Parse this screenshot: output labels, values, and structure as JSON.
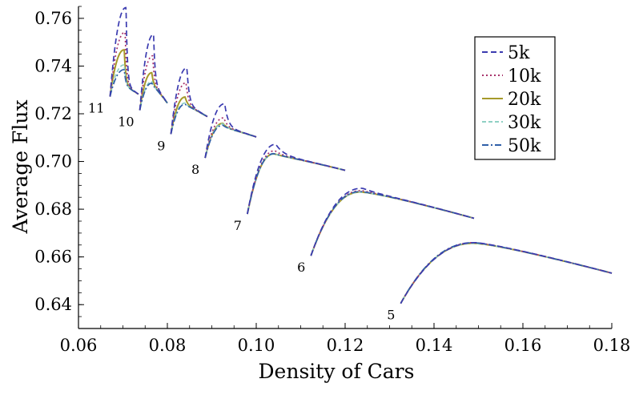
{
  "chart_data": {
    "type": "line",
    "title": "",
    "xlabel": "Density of Cars",
    "ylabel": "Average Flux",
    "xlim": [
      0.06,
      0.18
    ],
    "ylim": [
      0.63,
      0.765
    ],
    "xticks": [
      "0.06",
      "0.08",
      "0.10",
      "0.12",
      "0.14",
      "0.16",
      "0.18"
    ],
    "xtick_values": [
      0.06,
      0.08,
      0.1,
      0.12,
      0.14,
      0.16,
      0.18
    ],
    "yticks": [
      "0.64",
      "0.66",
      "0.68",
      "0.70",
      "0.72",
      "0.74",
      "0.76"
    ],
    "ytick_values": [
      0.64,
      0.66,
      0.68,
      0.7,
      0.72,
      0.74,
      0.76
    ],
    "grid": false,
    "legend_position": "top-right",
    "series": [
      {
        "name": "5k",
        "color": "#3b3bb0",
        "dash": "7,4"
      },
      {
        "name": "10k",
        "color": "#a8326b",
        "dash": "2,3"
      },
      {
        "name": "20k",
        "color": "#a69a2a",
        "dash": ""
      },
      {
        "name": "30k",
        "color": "#8fd0c4",
        "dash": "5,3"
      },
      {
        "name": "50k",
        "color": "#2f5fa8",
        "dash": "8,3,2,3"
      }
    ],
    "segments": [
      {
        "label": "5",
        "x_start": 0.1325,
        "x_end": 0.18,
        "y_start": 0.6405,
        "peak_x": 0.149,
        "peak_y": 0.6662,
        "y_end": 0.6532,
        "peaks": [
          0.666,
          0.666,
          0.6657,
          0.6657,
          0.666
        ]
      },
      {
        "label": "6",
        "x_start": 0.1123,
        "x_end": 0.149,
        "y_start": 0.6605,
        "peak_x": 0.1235,
        "peak_y": 0.6875,
        "y_end": 0.6762,
        "peaks": [
          0.6888,
          0.6878,
          0.6872,
          0.6872,
          0.6874
        ]
      },
      {
        "label": "7",
        "x_start": 0.098,
        "x_end": 0.12,
        "y_start": 0.678,
        "peak_x": 0.104,
        "peak_y": 0.7027,
        "y_end": 0.6963,
        "peaks": [
          0.7072,
          0.7045,
          0.7032,
          0.7031,
          0.7033
        ]
      },
      {
        "label": "8",
        "x_start": 0.0885,
        "x_end": 0.1,
        "y_start": 0.7015,
        "peak_x": 0.0925,
        "peak_y": 0.7142,
        "y_end": 0.7103,
        "peaks": [
          0.7242,
          0.7183,
          0.716,
          0.7158,
          0.7152
        ]
      },
      {
        "label": "9",
        "x_start": 0.0808,
        "x_end": 0.089,
        "y_start": 0.7115,
        "peak_x": 0.084,
        "peak_y": 0.7235,
        "y_end": 0.7188,
        "peaks": [
          0.7392,
          0.733,
          0.727,
          0.7245,
          0.724
        ]
      },
      {
        "label": "10",
        "x_start": 0.0738,
        "x_end": 0.08,
        "y_start": 0.7215,
        "peak_x": 0.0765,
        "peak_y": 0.732,
        "y_end": 0.7245,
        "peaks": [
          0.7532,
          0.7443,
          0.7372,
          0.7335,
          0.7328
        ]
      },
      {
        "label": "11",
        "x_start": 0.0671,
        "x_end": 0.0735,
        "y_start": 0.7272,
        "peak_x": 0.0703,
        "peak_y": 0.7315,
        "y_end": 0.7282,
        "peaks": [
          0.7645,
          0.7542,
          0.7468,
          0.7405,
          0.7385
        ]
      }
    ]
  }
}
